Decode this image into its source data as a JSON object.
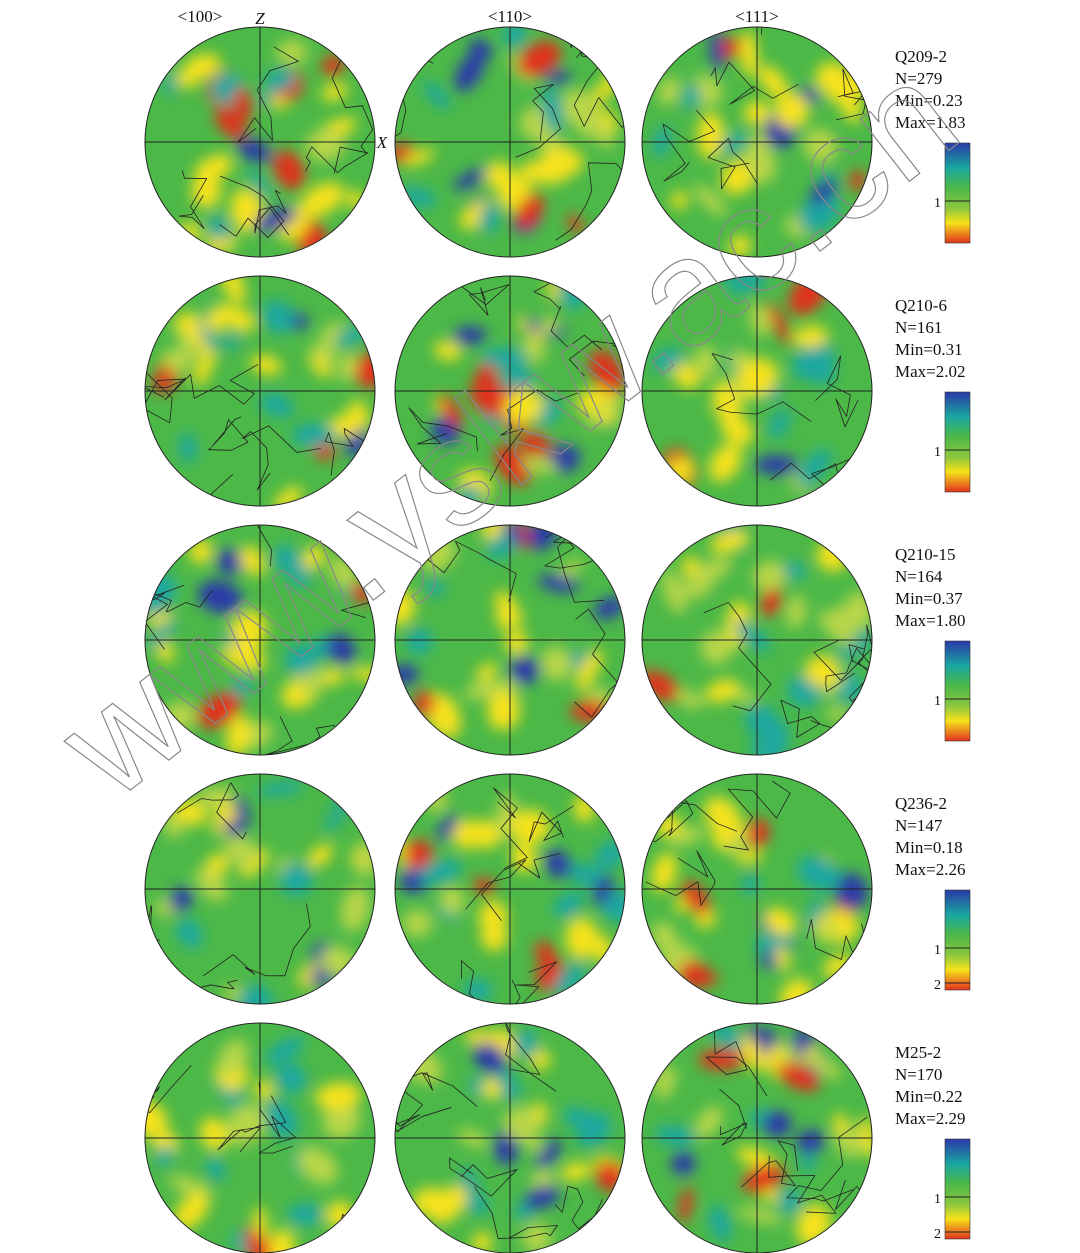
{
  "header": {
    "columns": [
      "<100>",
      "<110>",
      "<111>"
    ],
    "axis_z": "Z",
    "axis_x": "X"
  },
  "rows": [
    {
      "sample": "Q209-2",
      "n": "N=279",
      "min": "Min=0.23",
      "max": "Max=1.83",
      "scale_ticks": [
        "1"
      ]
    },
    {
      "sample": "Q210-6",
      "n": "N=161",
      "min": "Min=0.31",
      "max": "Max=2.02",
      "scale_ticks": [
        "1"
      ]
    },
    {
      "sample": "Q210-15",
      "n": "N=164",
      "min": "Min=0.37",
      "max": "Max=1.80",
      "scale_ticks": [
        "1"
      ]
    },
    {
      "sample": "Q236-2",
      "n": "N=147",
      "min": "Min=0.18",
      "max": "Max=2.26",
      "scale_ticks": [
        "1",
        "2"
      ]
    },
    {
      "sample": "M25-2",
      "n": "N=170",
      "min": "Min=0.22",
      "max": "Max=2.29",
      "scale_ticks": [
        "1",
        "2"
      ]
    }
  ],
  "watermark": "www.yskw.ac.cn"
}
